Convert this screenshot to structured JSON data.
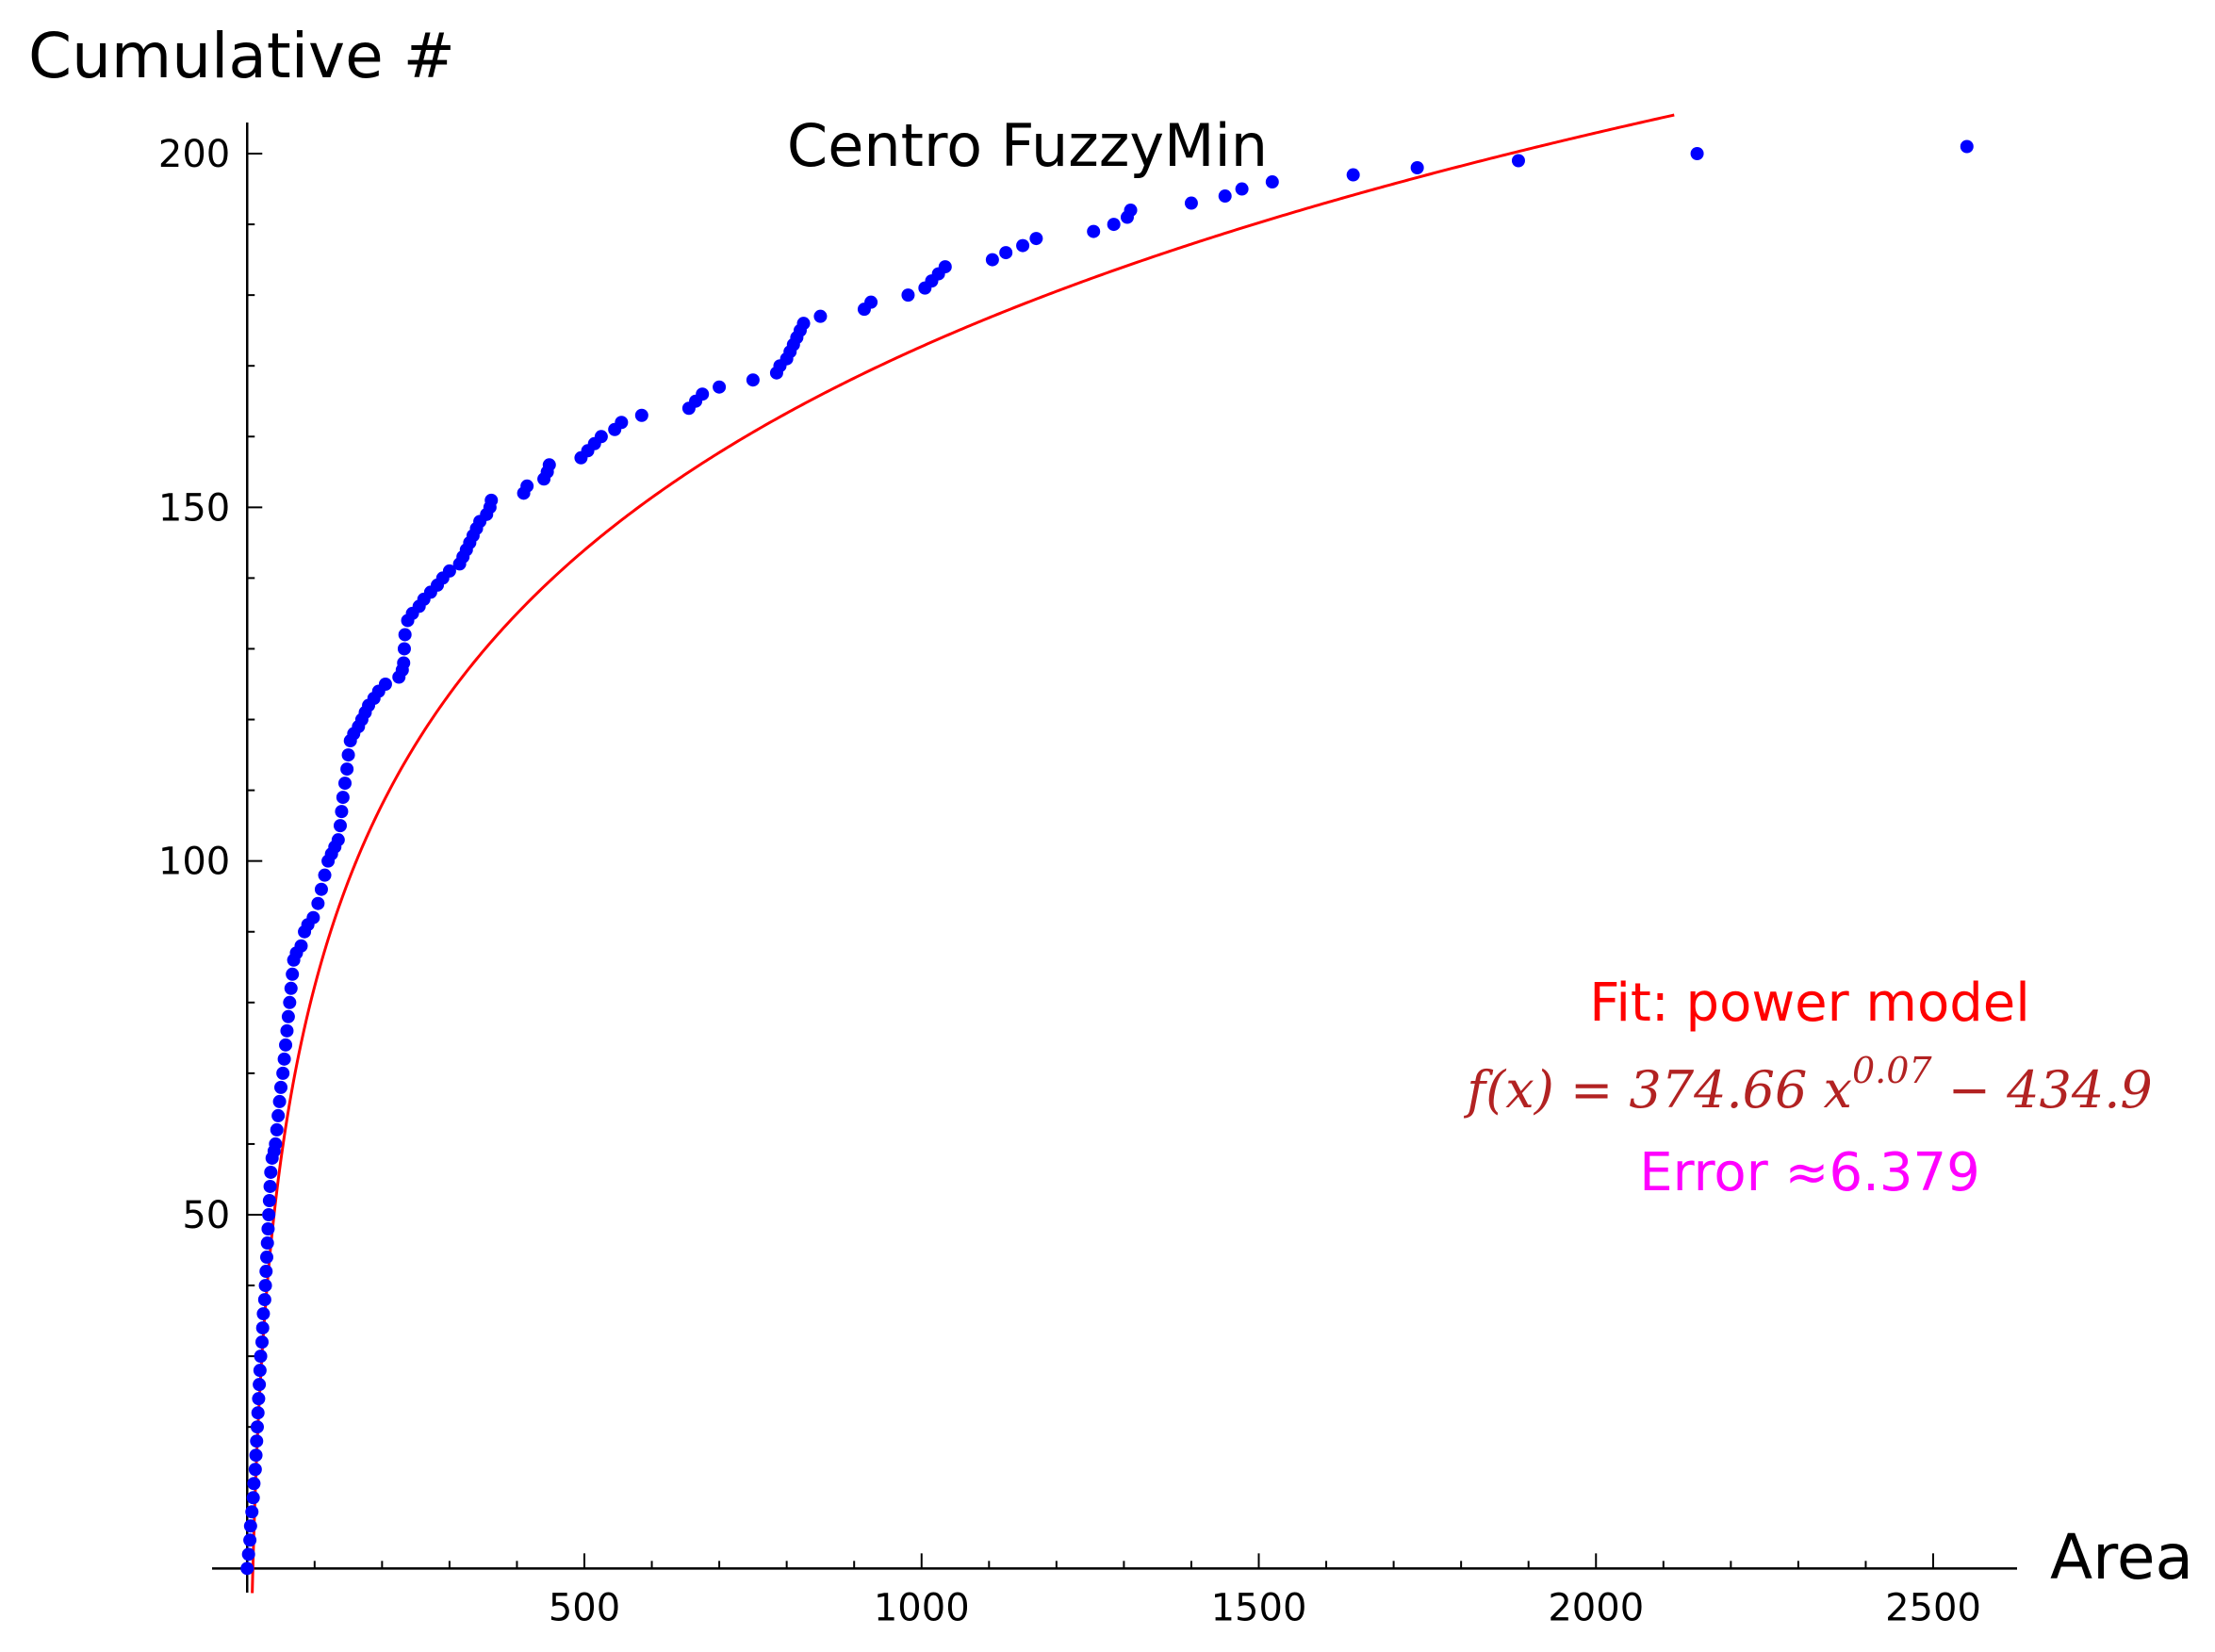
{
  "chart_data": {
    "type": "scatter",
    "title": "Centro FuzzyMin",
    "xlabel": "Area",
    "ylabel": "Cumulative #",
    "xlim": [
      -5,
      2590
    ],
    "ylim": [
      0,
      205
    ],
    "xticks": [
      500,
      1000,
      1500,
      2000,
      2500
    ],
    "yticks": [
      50,
      100,
      150,
      200
    ],
    "xtick_labels": [
      "500",
      "1000",
      "1500",
      "2000",
      "2500"
    ],
    "ytick_labels": [
      "50",
      "100",
      "150",
      "200"
    ],
    "grid": false,
    "colors": {
      "points": "#0000ff",
      "fit": "#ff0000",
      "equation": "#b22222",
      "error": "#ff00ff"
    },
    "series": [
      {
        "kind": "points",
        "points": [
          [
            0,
            0
          ],
          [
            2,
            2
          ],
          [
            4,
            4
          ],
          [
            5,
            6
          ],
          [
            7,
            8
          ],
          [
            9,
            10
          ],
          [
            10,
            12
          ],
          [
            12,
            14
          ],
          [
            13,
            16
          ],
          [
            14,
            18
          ],
          [
            15,
            20
          ],
          [
            16,
            22
          ],
          [
            17,
            24
          ],
          [
            18,
            26
          ],
          [
            19,
            28
          ],
          [
            20,
            30
          ],
          [
            22,
            32
          ],
          [
            23,
            34
          ],
          [
            24,
            36
          ],
          [
            26,
            38
          ],
          [
            27,
            40
          ],
          [
            28,
            42
          ],
          [
            29,
            44
          ],
          [
            30,
            46
          ],
          [
            31,
            48
          ],
          [
            32,
            50
          ],
          [
            33,
            52
          ],
          [
            34,
            54
          ],
          [
            35,
            56
          ],
          [
            37,
            58
          ],
          [
            40,
            59
          ],
          [
            42,
            60
          ],
          [
            44,
            62
          ],
          [
            46,
            64
          ],
          [
            48,
            66
          ],
          [
            50,
            68
          ],
          [
            53,
            70
          ],
          [
            55,
            72
          ],
          [
            57,
            74
          ],
          [
            59,
            76
          ],
          [
            61,
            78
          ],
          [
            63,
            80
          ],
          [
            65,
            82
          ],
          [
            67,
            84
          ],
          [
            69,
            86
          ],
          [
            73,
            87
          ],
          [
            80,
            88
          ],
          [
            85,
            90
          ],
          [
            90,
            91
          ],
          [
            98,
            92
          ],
          [
            105,
            94
          ],
          [
            110,
            96
          ],
          [
            115,
            98
          ],
          [
            120,
            100
          ],
          [
            125,
            101
          ],
          [
            130,
            102
          ],
          [
            135,
            103
          ],
          [
            138,
            105
          ],
          [
            140,
            107
          ],
          [
            142,
            109
          ],
          [
            145,
            111
          ],
          [
            148,
            113
          ],
          [
            150,
            115
          ],
          [
            153,
            117
          ],
          [
            158,
            118
          ],
          [
            165,
            119
          ],
          [
            170,
            120
          ],
          [
            175,
            121
          ],
          [
            180,
            122
          ],
          [
            188,
            123
          ],
          [
            195,
            124
          ],
          [
            205,
            125
          ],
          [
            225,
            126
          ],
          [
            230,
            127
          ],
          [
            232,
            128
          ],
          [
            233,
            130
          ],
          [
            234,
            132
          ],
          [
            238,
            134
          ],
          [
            245,
            135
          ],
          [
            255,
            136
          ],
          [
            262,
            137
          ],
          [
            272,
            138
          ],
          [
            282,
            139
          ],
          [
            290,
            140
          ],
          [
            300,
            141
          ],
          [
            315,
            142
          ],
          [
            320,
            143
          ],
          [
            325,
            144
          ],
          [
            330,
            145
          ],
          [
            335,
            146
          ],
          [
            340,
            147
          ],
          [
            345,
            148
          ],
          [
            355,
            149
          ],
          [
            360,
            150
          ],
          [
            362,
            151
          ],
          [
            410,
            152
          ],
          [
            415,
            153
          ],
          [
            440,
            154
          ],
          [
            445,
            155
          ],
          [
            448,
            156
          ],
          [
            495,
            157
          ],
          [
            505,
            158
          ],
          [
            515,
            159
          ],
          [
            525,
            160
          ],
          [
            545,
            161
          ],
          [
            555,
            162
          ],
          [
            585,
            163
          ],
          [
            655,
            164
          ],
          [
            665,
            165
          ],
          [
            675,
            166
          ],
          [
            700,
            167
          ],
          [
            750,
            168
          ],
          [
            785,
            169
          ],
          [
            790,
            170
          ],
          [
            800,
            171
          ],
          [
            805,
            172
          ],
          [
            810,
            173
          ],
          [
            815,
            174
          ],
          [
            820,
            175
          ],
          [
            825,
            176
          ],
          [
            850,
            177
          ],
          [
            915,
            178
          ],
          [
            925,
            179
          ],
          [
            980,
            180
          ],
          [
            1005,
            181
          ],
          [
            1015,
            182
          ],
          [
            1025,
            183
          ],
          [
            1035,
            184
          ],
          [
            1105,
            185
          ],
          [
            1125,
            186
          ],
          [
            1150,
            187
          ],
          [
            1170,
            188
          ],
          [
            1255,
            189
          ],
          [
            1285,
            190
          ],
          [
            1305,
            191
          ],
          [
            1310,
            192
          ],
          [
            1400,
            193
          ],
          [
            1450,
            194
          ],
          [
            1475,
            195
          ],
          [
            1520,
            196
          ],
          [
            1640,
            197
          ],
          [
            1735,
            198
          ],
          [
            1885,
            199
          ],
          [
            2150,
            200
          ],
          [
            2550,
            201
          ]
        ]
      },
      {
        "kind": "curve",
        "model": "power",
        "a": 374.66,
        "b": 0.07,
        "c": -434.9
      }
    ],
    "annotations": {
      "fit_label": "Fit: power model",
      "equation": "f(x) = 374.66 x",
      "equation_exponent": "0.07",
      "equation_tail": " − 434.9",
      "error_label": "Error ≈6.379"
    }
  }
}
